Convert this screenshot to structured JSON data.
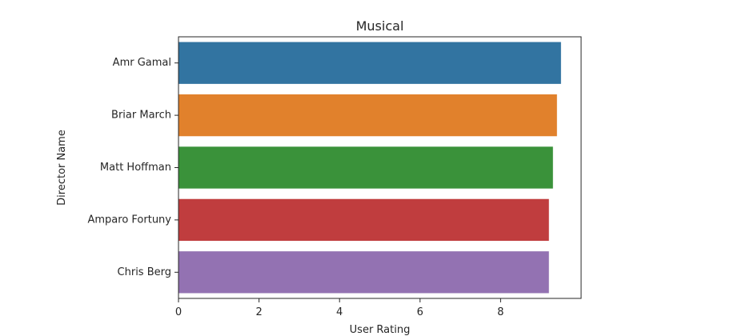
{
  "chart_data": {
    "type": "bar",
    "orientation": "horizontal",
    "title": "Musical",
    "xlabel": "User Rating",
    "ylabel": "Director Name",
    "categories": [
      "Amr Gamal",
      "Briar March",
      "Matt Hoffman",
      "Amparo Fortuny",
      "Chris Berg"
    ],
    "values": [
      9.5,
      9.4,
      9.3,
      9.2,
      9.2
    ],
    "xlim": [
      0,
      10
    ],
    "xticks": [
      "0",
      "2",
      "4",
      "6",
      "8"
    ],
    "colors": [
      "#3274a1",
      "#e1812c",
      "#3a923a",
      "#c03d3e",
      "#9372b2"
    ],
    "grid": false,
    "legend": "none"
  }
}
